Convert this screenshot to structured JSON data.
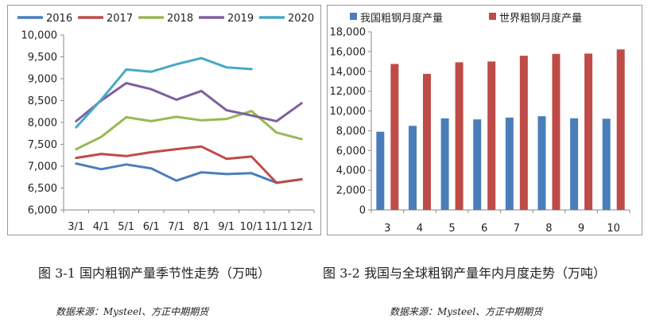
{
  "figures": [
    {
      "caption": "图 3-1  国内粗钢产量季节性走势（万吨）",
      "source": "数据来源：Mysteel、方正中期期货"
    },
    {
      "caption": "图 3-2  我国与全球粗钢产量年内月度走势（万吨）",
      "source": "数据来源：Mysteel、方正中期期货"
    }
  ],
  "chart_data": [
    {
      "type": "line",
      "title": "",
      "xlabel": "",
      "ylabel": "",
      "categories": [
        "3/1",
        "4/1",
        "5/1",
        "6/1",
        "7/1",
        "8/1",
        "9/1",
        "10/1",
        "11/1",
        "12/1"
      ],
      "ylim": [
        6000,
        10000
      ],
      "yticks": [
        "6,000",
        "6,500",
        "7,000",
        "7,500",
        "8,000",
        "8,500",
        "9,000",
        "9,500",
        "10,000"
      ],
      "grid": false,
      "legend": "top",
      "series": [
        {
          "name": "2016",
          "color": "#4a7ebb",
          "values": [
            7060,
            6930,
            7040,
            6950,
            6670,
            6860,
            6820,
            6840,
            6620,
            6700
          ]
        },
        {
          "name": "2017",
          "color": "#be4b48",
          "values": [
            7190,
            7280,
            7230,
            7320,
            7390,
            7450,
            7170,
            7220,
            6620,
            6700
          ]
        },
        {
          "name": "2018",
          "color": "#98b954",
          "values": [
            7390,
            7670,
            8120,
            8030,
            8130,
            8050,
            8080,
            8260,
            7770,
            7620
          ]
        },
        {
          "name": "2019",
          "color": "#7d60a0",
          "values": [
            8030,
            8500,
            8900,
            8760,
            8520,
            8720,
            8280,
            8160,
            8030,
            8440
          ]
        },
        {
          "name": "2020",
          "color": "#46aac5",
          "values": [
            7890,
            8520,
            9210,
            9160,
            9330,
            9470,
            9260,
            9220,
            null,
            null
          ]
        }
      ]
    },
    {
      "type": "bar",
      "title": "",
      "xlabel": "",
      "ylabel": "",
      "categories": [
        "3",
        "4",
        "5",
        "6",
        "7",
        "8",
        "9",
        "10"
      ],
      "ylim": [
        0,
        18000
      ],
      "yticks": [
        "0",
        "2,000",
        "4,000",
        "6,000",
        "8,000",
        "10,000",
        "12,000",
        "14,000",
        "16,000",
        "18,000"
      ],
      "grid": false,
      "legend": "top",
      "series": [
        {
          "name": "我国粗钢月度产量",
          "color": "#4a7ebb",
          "values": [
            7900,
            8500,
            9250,
            9150,
            9330,
            9470,
            9260,
            9220
          ]
        },
        {
          "name": "世界粗钢月度产量",
          "color": "#be4b48",
          "values": [
            14750,
            13750,
            14920,
            15000,
            15580,
            15770,
            15800,
            16220
          ]
        }
      ]
    }
  ]
}
